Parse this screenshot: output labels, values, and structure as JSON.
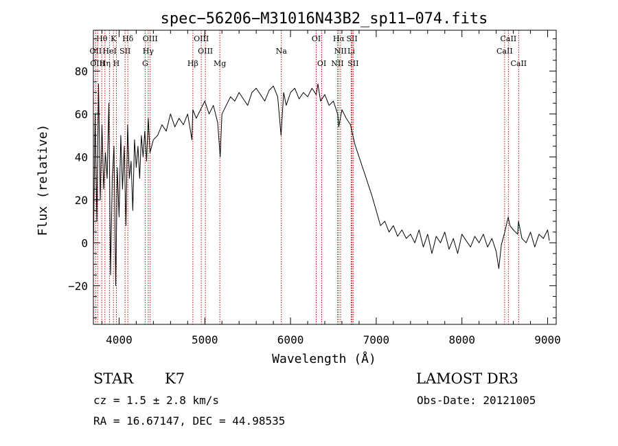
{
  "chart_data": {
    "type": "line",
    "title": "spec−56206−M31016N43B2_sp11−074.fits",
    "xlabel": "Wavelength (Å)",
    "ylabel": "Flux (relative)",
    "xlim": [
      3700,
      9100
    ],
    "ylim": [
      -38,
      99
    ],
    "x_ticks": [
      4000,
      5000,
      6000,
      7000,
      8000,
      9000
    ],
    "y_ticks": [
      -20,
      0,
      20,
      40,
      60,
      80
    ],
    "series": [
      {
        "name": "flux",
        "x": [
          3700,
          3720,
          3740,
          3760,
          3780,
          3800,
          3820,
          3840,
          3860,
          3880,
          3900,
          3920,
          3940,
          3960,
          3980,
          4000,
          4020,
          4040,
          4060,
          4080,
          4100,
          4120,
          4140,
          4160,
          4180,
          4200,
          4220,
          4240,
          4260,
          4280,
          4300,
          4320,
          4340,
          4360,
          4380,
          4400,
          4450,
          4500,
          4550,
          4600,
          4650,
          4700,
          4750,
          4800,
          4850,
          4860,
          4900,
          4950,
          5000,
          5050,
          5100,
          5150,
          5180,
          5200,
          5250,
          5300,
          5350,
          5400,
          5450,
          5500,
          5550,
          5600,
          5650,
          5700,
          5750,
          5800,
          5850,
          5890,
          5920,
          5950,
          6000,
          6050,
          6100,
          6150,
          6200,
          6250,
          6300,
          6320,
          6350,
          6400,
          6450,
          6500,
          6550,
          6563,
          6600,
          6650,
          6700,
          6750,
          6800,
          6850,
          6900,
          6950,
          7000,
          7050,
          7100,
          7150,
          7200,
          7250,
          7300,
          7350,
          7400,
          7450,
          7500,
          7550,
          7600,
          7650,
          7700,
          7750,
          7800,
          7850,
          7900,
          7950,
          8000,
          8050,
          8100,
          8150,
          8200,
          8250,
          8300,
          8350,
          8400,
          8430,
          8460,
          8500,
          8540,
          8560,
          8600,
          8650,
          8660,
          8700,
          8750,
          8800,
          8850,
          8900,
          8950,
          9000,
          9020
        ],
        "y": [
          -5,
          60,
          10,
          74,
          20,
          55,
          25,
          42,
          30,
          65,
          -15,
          30,
          45,
          -20,
          35,
          12,
          50,
          25,
          45,
          8,
          55,
          30,
          38,
          15,
          48,
          35,
          45,
          30,
          50,
          40,
          52,
          38,
          58,
          42,
          45,
          48,
          50,
          55,
          52,
          60,
          54,
          58,
          55,
          60,
          48,
          62,
          58,
          62,
          66,
          60,
          64,
          56,
          40,
          60,
          64,
          68,
          66,
          70,
          67,
          64,
          70,
          72,
          69,
          66,
          71,
          73,
          68,
          50,
          70,
          64,
          70,
          72,
          67,
          70,
          68,
          72,
          69,
          74,
          66,
          69,
          64,
          66,
          60,
          54,
          62,
          58,
          55,
          46,
          40,
          34,
          28,
          22,
          15,
          8,
          10,
          5,
          8,
          3,
          6,
          2,
          4,
          0,
          6,
          -2,
          4,
          -5,
          3,
          0,
          5,
          -3,
          2,
          -5,
          4,
          1,
          -2,
          3,
          0,
          4,
          -2,
          2,
          -4,
          -12,
          -1,
          5,
          12,
          8,
          6,
          4,
          10,
          2,
          0,
          5,
          -2,
          4,
          2,
          6,
          1
        ]
      }
    ],
    "lines": [
      {
        "name": "Hθ",
        "x": 3798,
        "row": 0
      },
      {
        "name": "K",
        "x": 3934,
        "row": 0
      },
      {
        "name": "Hδ",
        "x": 4102,
        "row": 0
      },
      {
        "name": "OIII",
        "x": 4363,
        "row": 0
      },
      {
        "name": "OIII",
        "x": 4959,
        "row": 0
      },
      {
        "name": "OI",
        "x": 6300,
        "row": 0
      },
      {
        "name": "Hα",
        "x": 6563,
        "row": 0
      },
      {
        "name": "SII",
        "x": 6717,
        "row": 0
      },
      {
        "name": "CaII",
        "x": 8542,
        "row": 0
      },
      {
        "name": "OII",
        "x": 3727,
        "row": 1
      },
      {
        "name": "HeI",
        "x": 3889,
        "row": 1
      },
      {
        "name": "SII",
        "x": 4070,
        "row": 1
      },
      {
        "name": "Hγ",
        "x": 4340,
        "row": 1
      },
      {
        "name": "OIII",
        "x": 5007,
        "row": 1
      },
      {
        "name": "Na",
        "x": 5893,
        "row": 1
      },
      {
        "name": "NII",
        "x": 6584,
        "row": 1
      },
      {
        "name": "Li",
        "x": 6708,
        "row": 1
      },
      {
        "name": "CaII",
        "x": 8498,
        "row": 1
      },
      {
        "name": "OIII",
        "x": 3750,
        "row": 2
      },
      {
        "name": "Hη",
        "x": 3835,
        "row": 2
      },
      {
        "name": "H",
        "x": 3968,
        "row": 2
      },
      {
        "name": "G",
        "x": 4304,
        "row": 2
      },
      {
        "name": "Hβ",
        "x": 4861,
        "row": 2
      },
      {
        "name": "Mg",
        "x": 5175,
        "row": 2
      },
      {
        "name": "OI",
        "x": 6364,
        "row": 2
      },
      {
        "name": "NII",
        "x": 6548,
        "row": 2
      },
      {
        "name": "SII",
        "x": 6731,
        "row": 2
      },
      {
        "name": "CaII",
        "x": 8662,
        "row": 2
      }
    ]
  },
  "info": {
    "class_label": "STAR",
    "subclass": "K7",
    "survey": "LAMOST DR3",
    "cz": "cz = 1.5 ± 2.8 km/s",
    "obs_date": "Obs-Date: 20121005",
    "coords": "RA =  16.67147, DEC =  44.98535"
  },
  "colors": {
    "spectrum": "#000000",
    "line_markers": "#c00000",
    "axes": "#000000"
  }
}
